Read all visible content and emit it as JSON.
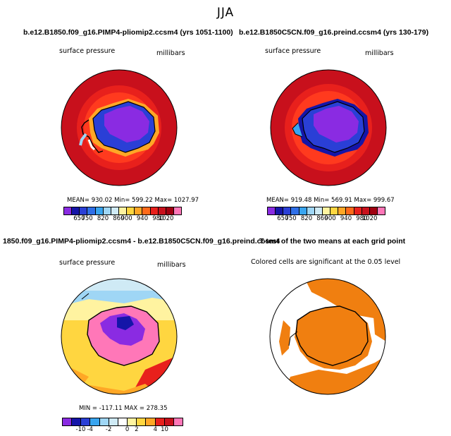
{
  "season": "JJA",
  "panels": [
    {
      "title": "b.e12.B1850.f09_g16.PIMP4-pliomip2.ccsm4 (yrs 1051-1100)",
      "variable": "surface pressure",
      "units": "millibars",
      "stats": "MEAN= 930.02   Min= 599.22   Max= 1027.97",
      "colorbar_labels": [
        "650",
        "750",
        "820",
        "860",
        "900",
        "940",
        "980",
        "1020"
      ],
      "colors": [
        "#8a2be2",
        "#1515a8",
        "#2a3fd6",
        "#2f6fe8",
        "#39a5f0",
        "#9fd6f5",
        "#cfeaf5",
        "#fff3a0",
        "#ffd640",
        "#ffa726",
        "#ff6a1a",
        "#e8201c",
        "#c8101c",
        "#a00010",
        "#ff77b8"
      ]
    },
    {
      "title": "b.e12.B1850C5CN.f09_g16.preind.ccsm4 (yrs 130-179)",
      "variable": "surface pressure",
      "units": "millibars",
      "stats": "MEAN= 919.48   Min= 569.91   Max= 999.67",
      "colorbar_labels": [
        "650",
        "750",
        "820",
        "860",
        "900",
        "940",
        "980",
        "1020"
      ],
      "colors": [
        "#8a2be2",
        "#1515a8",
        "#2a3fd6",
        "#2f6fe8",
        "#39a5f0",
        "#9fd6f5",
        "#cfeaf5",
        "#fff3a0",
        "#ffd640",
        "#ffa726",
        "#ff6a1a",
        "#e8201c",
        "#c8101c",
        "#a00010",
        "#ff77b8"
      ]
    },
    {
      "title": "1850.f09_g16.PIMP4-pliomip2.ccsm4 - b.e12.B1850C5CN.f09_g16.preind.ccsm4",
      "variable": "surface pressure",
      "units": "millibars",
      "stats": "MIN = -117.11  MAX = 278.35",
      "colorbar_labels": [
        "-10",
        "-4",
        "-2",
        "0",
        "2",
        "4",
        "10"
      ],
      "colors": [
        "#8a2be2",
        "#1515a8",
        "#2a3fd6",
        "#39a5f0",
        "#9fd6f5",
        "#cfeaf5",
        "#ffffff",
        "#fff3a0",
        "#ffd640",
        "#ffa726",
        "#e8201c",
        "#c8101c",
        "#ff77b8"
      ]
    },
    {
      "title": "T-test of the two means at each grid point",
      "caption": "Colored cells are significant at the 0.05 level",
      "colors": [
        "#f07f10"
      ]
    }
  ]
}
